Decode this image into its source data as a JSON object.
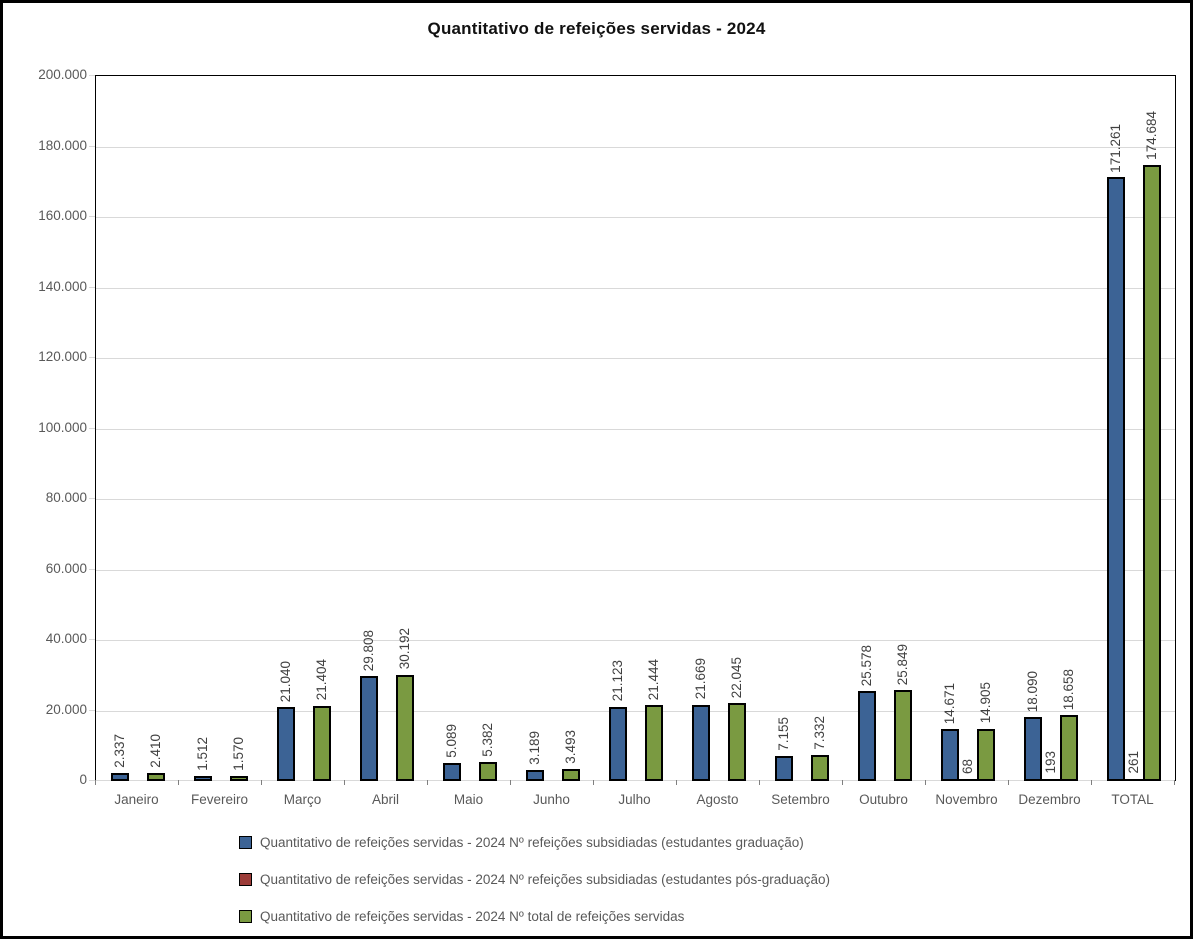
{
  "chart_data": {
    "type": "bar",
    "title": "Quantitativo de refeições servidas - 2024",
    "categories": [
      "Janeiro",
      "Fevereiro",
      "Março",
      "Abril",
      "Maio",
      "Junho",
      "Julho",
      "Agosto",
      "Setembro",
      "Outubro",
      "Novembro",
      "Dezembro",
      "TOTAL"
    ],
    "series": [
      {
        "name": "Quantitativo de refeições servidas - 2024 Nº refeições subsidiadas (estudantes graduação)",
        "color": "#3c6395",
        "values": [
          2337,
          1512,
          21040,
          29808,
          5089,
          3189,
          21123,
          21669,
          7155,
          25578,
          14671,
          18090,
          171261
        ],
        "labels": [
          "2.337",
          "1.512",
          "21.040",
          "29.808",
          "5.089",
          "3.189",
          "21.123",
          "21.669",
          "7.155",
          "25.578",
          "14.671",
          "18.090",
          "171.261"
        ]
      },
      {
        "name": "Quantitativo de refeições servidas - 2024 Nº refeições subsidiadas (estudantes pós-graduação)",
        "color": "#9c3c38",
        "values": [
          null,
          null,
          null,
          null,
          null,
          null,
          null,
          null,
          null,
          null,
          68,
          193,
          261
        ],
        "labels": [
          null,
          null,
          null,
          null,
          null,
          null,
          null,
          null,
          null,
          null,
          "68",
          "193",
          "261"
        ]
      },
      {
        "name": "Quantitativo de refeições servidas - 2024 Nº total de refeições servidas",
        "color": "#7a9a41",
        "values": [
          2410,
          1570,
          21404,
          30192,
          5382,
          3493,
          21444,
          22045,
          7332,
          25849,
          14905,
          18658,
          174684
        ],
        "labels": [
          "2.410",
          "1.570",
          "21.404",
          "30.192",
          "5.382",
          "3.493",
          "21.444",
          "22.045",
          "7.332",
          "25.849",
          "14.905",
          "18.658",
          "174.684"
        ]
      }
    ],
    "y_axis": {
      "min": 0,
      "max": 200000,
      "step": 20000,
      "tick_labels": [
        "0",
        "20.000",
        "40.000",
        "60.000",
        "80.000",
        "100.000",
        "120.000",
        "140.000",
        "160.000",
        "180.000",
        "200.000"
      ]
    },
    "grid": true,
    "legend_position": "bottom-left",
    "bar_border_color": "#000000",
    "gridline_color": "#d9d9d9"
  }
}
